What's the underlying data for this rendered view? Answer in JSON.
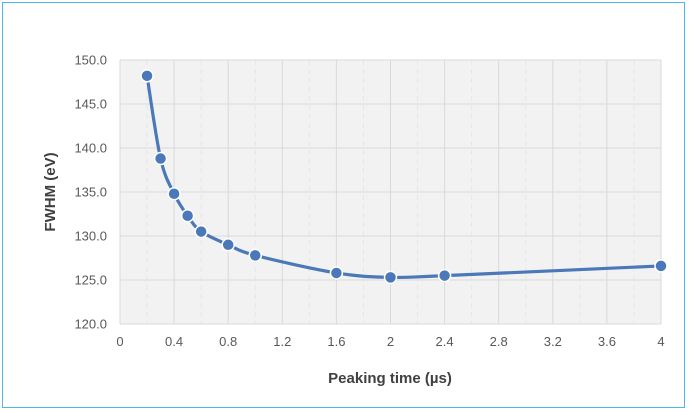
{
  "chart_data": {
    "type": "line",
    "title": "",
    "xlabel": "Peaking time (µs)",
    "ylabel": "FWHM (eV)",
    "xlim": [
      0,
      4
    ],
    "ylim": [
      120,
      150
    ],
    "x_ticks": [
      0,
      0.4,
      0.8,
      1.2,
      1.6,
      2,
      2.4,
      2.8,
      3.2,
      3.6,
      4
    ],
    "x_tick_labels": [
      "0",
      "0.4",
      "0.8",
      "1.2",
      "1.6",
      "2",
      "2.4",
      "2.8",
      "3.2",
      "3.6",
      "4"
    ],
    "y_ticks": [
      120,
      125,
      130,
      135,
      140,
      145,
      150
    ],
    "y_tick_labels": [
      "120.0",
      "125.0",
      "130.0",
      "135.0",
      "140.0",
      "145.0",
      "150.0"
    ],
    "grid": true,
    "legend": "none",
    "series": [
      {
        "color": "#4a78b8",
        "x": [
          0.2,
          0.3,
          0.4,
          0.5,
          0.6,
          0.8,
          1.0,
          1.6,
          2.0,
          2.4,
          4.0
        ],
        "y": [
          148.2,
          138.8,
          134.8,
          132.3,
          130.5,
          129.0,
          127.8,
          125.8,
          125.3,
          125.5,
          126.6
        ]
      }
    ],
    "colors": {
      "series": "#4a78b8",
      "plot_background": "#f2f2f2",
      "grid_major": "#d9d9d9",
      "grid_minor": "#e6e6e6",
      "frame_border": "#4fb8e8"
    }
  }
}
